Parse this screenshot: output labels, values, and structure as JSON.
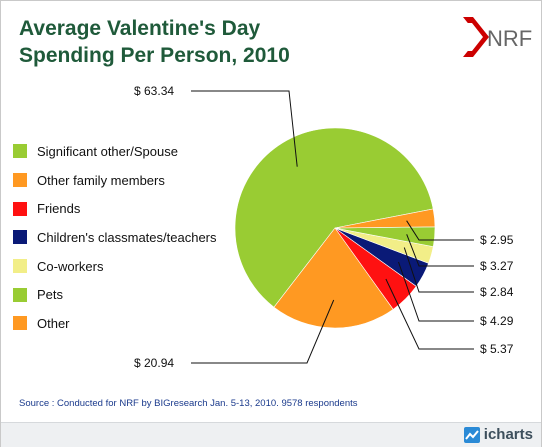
{
  "title_line1": "Average Valentine's Day",
  "title_line2": "Spending Per Person, 2010",
  "logo_text": "NRF",
  "source": "Source : Conducted for NRF by BIGresearch Jan. 5-13, 2010. 9578 respondents",
  "footer_brand": "icharts",
  "colors": {
    "title": "#1f5a3a",
    "spouse": "#99cc33",
    "family": "#ff9922",
    "friends": "#ff1111",
    "children": "#0a1a77",
    "coworkers": "#f2ee88",
    "pets": "#99cc33",
    "other": "#ff9922",
    "logo_red": "#cc0000"
  },
  "chart_data": {
    "type": "pie",
    "title": "Average Valentine's Day Spending Per Person, 2010",
    "legend_position": "left",
    "categories": [
      "Significant other/Spouse",
      "Other family members",
      "Friends",
      "Children's classmates/teachers",
      "Co-workers",
      "Pets",
      "Other"
    ],
    "values": [
      63.34,
      20.94,
      5.37,
      4.29,
      2.84,
      3.27,
      2.95
    ],
    "value_labels": [
      "$ 63.34",
      "$ 20.94",
      "$ 5.37",
      "$ 4.29",
      "$ 2.84",
      "$ 3.27",
      "$ 2.95"
    ],
    "slice_colors": [
      "#99cc33",
      "#ff9922",
      "#ff1111",
      "#0a1a77",
      "#f2ee88",
      "#99cc33",
      "#ff9922"
    ],
    "legend_colors": [
      "#99cc33",
      "#ff9922",
      "#ff1111",
      "#0a1a77",
      "#f2ee88",
      "#99cc33",
      "#ff9922"
    ]
  }
}
